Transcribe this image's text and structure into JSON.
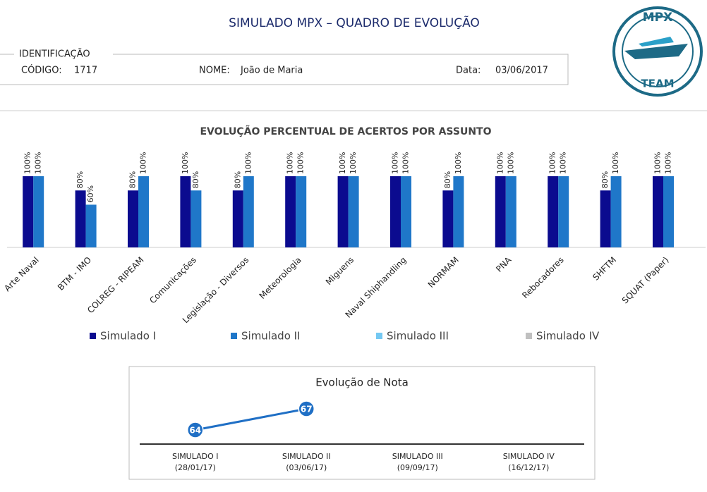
{
  "header": {
    "title": "SIMULADO MPX – QUADRO DE EVOLUÇÃO",
    "logo_top": "MPX",
    "logo_bottom": "TEAM"
  },
  "identification": {
    "label": "IDENTIFICAÇÃO",
    "code_label": "CÓDIGO:",
    "code": "1717",
    "name_label": "NOME:",
    "name": "João de Maria",
    "date_label": "Data:",
    "date": "03/06/2017"
  },
  "chart_data": [
    {
      "type": "bar",
      "title": "EVOLUÇÃO PERCENTUAL DE ACERTOS POR ASSUNTO",
      "categories": [
        "Arte Naval",
        "BTM - IMO",
        "COLREG - RIPEAM",
        "Comunicações",
        "Legislação - Diversos",
        "Meteorologia",
        "Miguens",
        "Naval Shiphandling",
        "NORMAM",
        "PNA",
        "Rebocadores",
        "SHFTM",
        "SQUAT (Paper)"
      ],
      "ylim": [
        0,
        100
      ],
      "series": [
        {
          "name": "Simulado I",
          "color": "#0b0b8f",
          "values": [
            100,
            80,
            80,
            100,
            80,
            100,
            100,
            100,
            80,
            100,
            100,
            80,
            100
          ],
          "value_labels": [
            "100%",
            "80%",
            "80%",
            "100%",
            "80%",
            "100%",
            "100%",
            "100%",
            "80%",
            "100%",
            "100%",
            "80%",
            "100%"
          ]
        },
        {
          "name": "Simulado II",
          "color": "#1f77c9",
          "values": [
            100,
            60,
            100,
            80,
            100,
            100,
            100,
            100,
            100,
            100,
            100,
            100,
            100
          ],
          "value_labels": [
            "100%",
            "60%",
            "100%",
            "80%",
            "100%",
            "100%",
            "100%",
            "100%",
            "100%",
            "100%",
            "100%",
            "100%",
            "100%"
          ]
        },
        {
          "name": "Simulado III",
          "color": "#74c8f2",
          "values": [
            null,
            null,
            null,
            null,
            null,
            null,
            null,
            null,
            null,
            null,
            null,
            null,
            null
          ]
        },
        {
          "name": "Simulado IV",
          "color": "#c0c0c0",
          "values": [
            null,
            null,
            null,
            null,
            null,
            null,
            null,
            null,
            null,
            null,
            null,
            null,
            null
          ]
        }
      ]
    },
    {
      "type": "line",
      "title": "Evolução de Nota",
      "categories": [
        "SIMULADO I",
        "SIMULADO II",
        "SIMULADO III",
        "SIMULADO IV"
      ],
      "dates": [
        "(28/01/17)",
        "(03/06/17)",
        "(09/09/17)",
        "(16/12/17)"
      ],
      "values": [
        64,
        67,
        null,
        null
      ],
      "color": "#1f6fc5",
      "ylim": [
        62,
        72
      ]
    }
  ]
}
